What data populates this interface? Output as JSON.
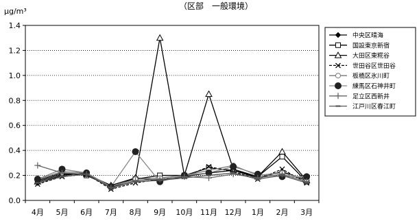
{
  "chart_data": {
    "type": "line",
    "title": "（区部　一般環境）",
    "ylabel": "μg/m³",
    "ylim": [
      0,
      1.4
    ],
    "yticks": [
      "0.0",
      "0.2",
      "0.4",
      "0.6",
      "0.8",
      "1.0",
      "1.2",
      "1.4"
    ],
    "grid": "horizontal dotted",
    "legend_position": "right",
    "categories": [
      "4月",
      "5月",
      "6月",
      "7月",
      "8月",
      "9月",
      "10月",
      "11月",
      "12月",
      "1月",
      "2月",
      "3月"
    ],
    "series": [
      {
        "name": "中央区晴海",
        "marker": "diamond-filled",
        "dash": "solid",
        "color": "#000000",
        "values": [
          0.14,
          0.2,
          0.22,
          0.1,
          0.18,
          0.16,
          0.19,
          0.22,
          0.24,
          0.18,
          0.23,
          0.16
        ]
      },
      {
        "name": "国設東京新宿",
        "marker": "square-open",
        "dash": "solid",
        "color": "#000000",
        "values": [
          0.16,
          0.22,
          0.2,
          0.11,
          0.17,
          0.2,
          0.2,
          0.26,
          0.24,
          0.19,
          0.35,
          0.15
        ]
      },
      {
        "name": "大田区東糀谷",
        "marker": "triangle-open",
        "dash": "solid",
        "color": "#000000",
        "values": [
          0.15,
          0.21,
          0.21,
          0.12,
          0.18,
          1.3,
          0.2,
          0.85,
          0.25,
          0.19,
          0.39,
          0.16
        ]
      },
      {
        "name": "世田谷区世田谷",
        "marker": "x",
        "dash": "dashed",
        "color": "#000000",
        "values": [
          0.13,
          0.19,
          0.21,
          0.09,
          0.14,
          0.17,
          0.19,
          0.27,
          0.23,
          0.17,
          0.25,
          0.14
        ]
      },
      {
        "name": "板橋区氷川町",
        "marker": "circle-open",
        "dash": "solid",
        "color": "#777777",
        "values": [
          0.17,
          0.23,
          0.22,
          0.11,
          0.17,
          0.18,
          0.2,
          0.24,
          0.28,
          0.2,
          0.22,
          0.17
        ]
      },
      {
        "name": "練馬区石神井町",
        "marker": "circle-filled",
        "dash": "solid",
        "color": "#888888",
        "values": [
          0.17,
          0.25,
          0.22,
          0.11,
          0.39,
          0.15,
          0.2,
          0.22,
          0.27,
          0.21,
          0.19,
          0.19
        ]
      },
      {
        "name": "足立区西新井",
        "marker": "plus",
        "dash": "solid",
        "color": "#666666",
        "values": [
          0.28,
          0.22,
          0.21,
          0.1,
          0.16,
          0.17,
          0.19,
          0.18,
          0.21,
          0.18,
          0.21,
          0.15
        ]
      },
      {
        "name": "江戸川区春江町",
        "marker": "dash",
        "dash": "solid",
        "color": "#555555",
        "values": [
          0.14,
          0.19,
          0.21,
          0.1,
          0.15,
          0.16,
          0.18,
          0.2,
          0.22,
          0.17,
          0.2,
          0.14
        ]
      }
    ]
  }
}
